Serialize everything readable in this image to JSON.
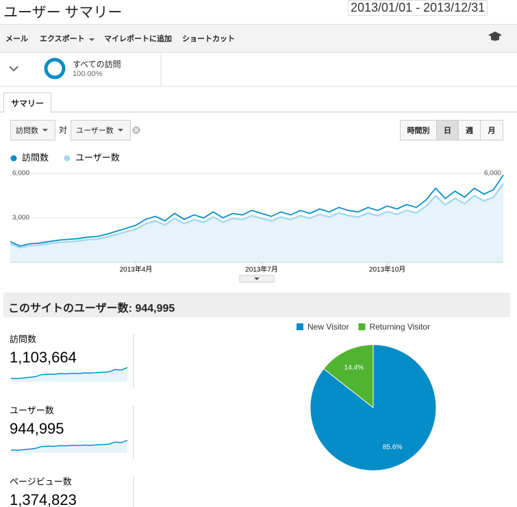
{
  "header": {
    "title": "ユーザー サマリー",
    "date_range": "2013/01/01 - 2013/12/31"
  },
  "toolbar": {
    "items": [
      "メール",
      "エクスポート",
      "マイレポートに追加",
      "ショートカット"
    ]
  },
  "segment": {
    "name": "すべての訪問",
    "percent": "100.00%"
  },
  "tab": "サマリー",
  "controls": {
    "metric": "訪問数",
    "vs": "対",
    "compare": "ユーザー数",
    "buttons": [
      "時間別",
      "日",
      "週",
      "月"
    ]
  },
  "chart_data": [
    {
      "type": "line",
      "categories": [
        null,
        null,
        null,
        null,
        null,
        null,
        null,
        null,
        null,
        null,
        null,
        null,
        null,
        "2013年4月",
        null,
        null,
        null,
        null,
        null,
        null,
        null,
        null,
        null,
        null,
        null,
        null,
        "2013年7月",
        null,
        null,
        null,
        null,
        null,
        null,
        null,
        null,
        null,
        null,
        null,
        null,
        "2013年10月",
        null,
        null,
        null,
        null,
        null,
        null,
        null,
        null,
        null,
        null,
        null,
        null
      ],
      "series": [
        {
          "name": "訪問数",
          "color": "#058dc7",
          "values": [
            1400,
            1100,
            1250,
            1300,
            1400,
            1500,
            1550,
            1600,
            1700,
            1750,
            1900,
            2100,
            2300,
            2500,
            2900,
            3100,
            2800,
            3300,
            2900,
            3200,
            3000,
            3400,
            3000,
            3300,
            3200,
            3500,
            3300,
            3100,
            3400,
            3200,
            3500,
            3300,
            3600,
            3400,
            3700,
            3500,
            3400,
            3700,
            3500,
            3800,
            3600,
            3900,
            3700,
            4200,
            5000,
            4300,
            4800,
            4400,
            5000,
            4600,
            4900,
            5900
          ]
        },
        {
          "name": "ユーザー数",
          "color": "#a6d8ef",
          "values": [
            1250,
            1000,
            1120,
            1170,
            1260,
            1350,
            1390,
            1440,
            1530,
            1570,
            1710,
            1890,
            2070,
            2250,
            2600,
            2790,
            2520,
            2970,
            2610,
            2880,
            2700,
            3060,
            2700,
            2970,
            2880,
            3150,
            2970,
            2790,
            3060,
            2880,
            3150,
            2970,
            3240,
            3060,
            3330,
            3150,
            3060,
            3330,
            3150,
            3420,
            3240,
            3510,
            3330,
            3780,
            4500,
            3870,
            4320,
            3960,
            4500,
            4140,
            4410,
            5300
          ]
        }
      ],
      "ylim": [
        0,
        6000
      ],
      "yticks": [
        {
          "value": 3000,
          "label": "3,000"
        },
        {
          "value": 6000,
          "label": "6,000"
        }
      ],
      "grid": true
    },
    {
      "type": "pie",
      "categories": [
        "New Visitor",
        "Returning Visitor"
      ],
      "values": [
        85.6,
        14.4
      ],
      "value_labels": [
        "85.6%",
        "14.4%"
      ],
      "colors": [
        "#058dc7",
        "#50b432"
      ]
    }
  ],
  "summary": {
    "heading": "このサイトのユーザー数: 944,995",
    "metrics": [
      {
        "label": "訪問数",
        "value": "1,103,664",
        "values": [
          1300,
          1200,
          1400,
          1700,
          2000,
          2800,
          3000,
          2900,
          3200,
          3100,
          3300,
          3200,
          3500,
          3400,
          3600,
          3700,
          3900,
          4800,
          4600,
          5600
        ]
      },
      {
        "label": "ユーザー数",
        "value": "944,995",
        "values": [
          1150,
          1050,
          1250,
          1500,
          1800,
          2500,
          2700,
          2600,
          2900,
          2800,
          3000,
          2900,
          3100,
          3000,
          3200,
          3300,
          3500,
          4300,
          4100,
          5000
        ]
      },
      {
        "label": "ページビュー数",
        "value": "1,374,823",
        "values": []
      }
    ],
    "ylim": [
      0,
      6000
    ]
  }
}
